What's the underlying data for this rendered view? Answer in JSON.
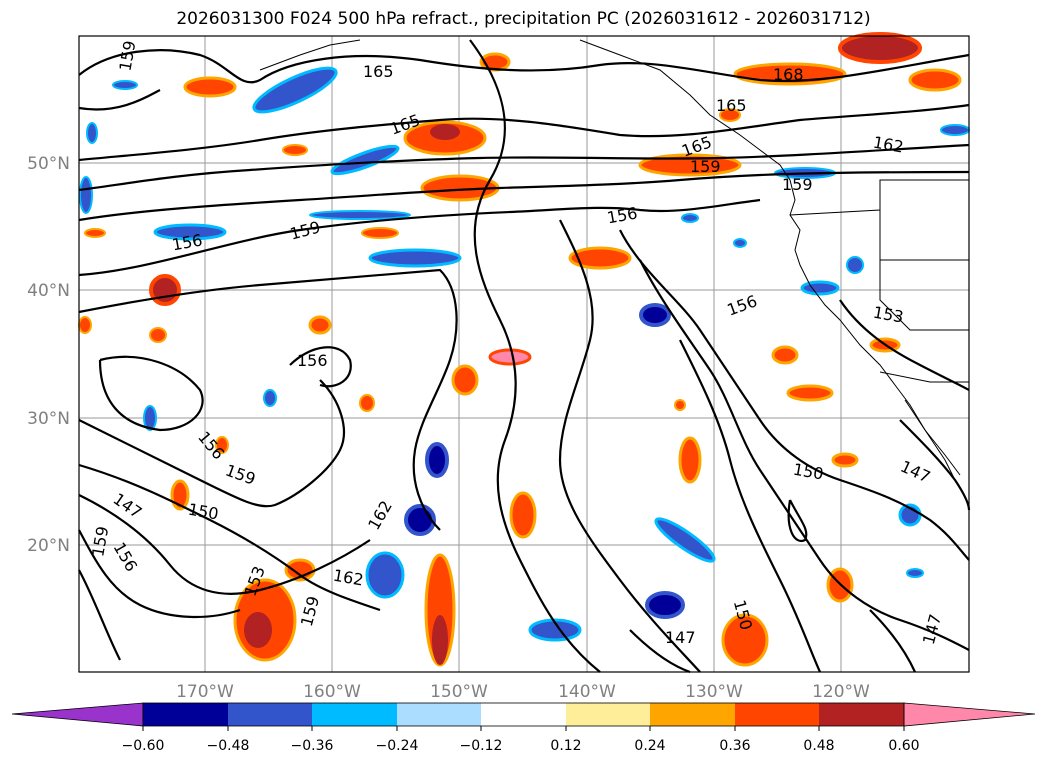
{
  "title": "2026031300 F024 500 hPa refract., precipitation PC (2026031612 - 2026031712)",
  "map": {
    "lat_labels": [
      "50°N",
      "40°N",
      "30°N",
      "20°N"
    ],
    "lon_labels": [
      "170°W",
      "160°W",
      "150°W",
      "140°W",
      "130°W",
      "120°W"
    ],
    "contour_labels": [
      "159",
      "165",
      "168",
      "165",
      "165",
      "162",
      "165",
      "159",
      "159",
      "156",
      "159",
      "156",
      "156",
      "153",
      "156",
      "156",
      "159",
      "150",
      "147",
      "159",
      "156",
      "162",
      "153",
      "159",
      "162",
      "150",
      "147",
      "147",
      "147",
      "150"
    ],
    "colors": {
      "coast": "#000000",
      "grid": "#9a9a9a",
      "contour": "#000000"
    }
  },
  "colorbar": {
    "ticks": [
      "−0.60",
      "−0.48",
      "−0.36",
      "−0.24",
      "−0.12",
      "0.12",
      "0.24",
      "0.36",
      "0.48",
      "0.60"
    ],
    "colors": [
      "#9933cc",
      "#000099",
      "#3355cc",
      "#00bbff",
      "#aaddff",
      "#ffffff",
      "#ffee99",
      "#ffa500",
      "#ff4500",
      "#b22222",
      "#ff88aa"
    ]
  }
}
